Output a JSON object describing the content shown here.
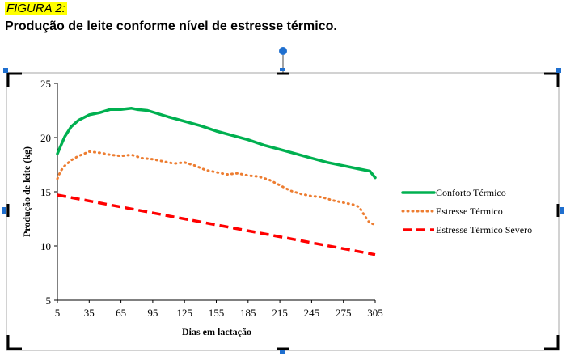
{
  "figure_label": "FIGURA 2:",
  "figure_title": "Produção de leite conforme nível de estresse térmico.",
  "colors": {
    "conforto": "#00b050",
    "estresse": "#ed7d31",
    "severo": "#ff0000",
    "handle": "#1f6fcf"
  },
  "chart_data": {
    "type": "line",
    "xlabel": "Dias em lactação",
    "ylabel": "Produção de leite (kg)",
    "xlim": [
      5,
      305
    ],
    "ylim": [
      5,
      25
    ],
    "xticks": [
      5,
      35,
      65,
      95,
      125,
      155,
      185,
      215,
      245,
      275,
      305
    ],
    "yticks": [
      5,
      10,
      15,
      20,
      25
    ],
    "legend_position": "right",
    "series": [
      {
        "name": "Conforto Térmico",
        "style": "solid",
        "x": [
          5,
          8,
          12,
          18,
          25,
          35,
          45,
          55,
          65,
          75,
          80,
          90,
          100,
          110,
          125,
          140,
          155,
          170,
          185,
          200,
          215,
          230,
          245,
          260,
          275,
          290,
          300,
          305
        ],
        "y": [
          18.5,
          19.2,
          20.1,
          21.0,
          21.6,
          22.1,
          22.3,
          22.6,
          22.6,
          22.7,
          22.6,
          22.5,
          22.2,
          21.9,
          21.5,
          21.1,
          20.6,
          20.2,
          19.8,
          19.3,
          18.9,
          18.5,
          18.1,
          17.7,
          17.4,
          17.1,
          16.9,
          16.3
        ]
      },
      {
        "name": "Estresse Térmico",
        "style": "dotted",
        "x": [
          5,
          8,
          12,
          18,
          25,
          35,
          45,
          55,
          65,
          75,
          85,
          95,
          105,
          115,
          125,
          135,
          145,
          155,
          165,
          175,
          185,
          195,
          205,
          215,
          225,
          235,
          245,
          255,
          265,
          275,
          285,
          290,
          295,
          300,
          305
        ],
        "y": [
          16.2,
          16.9,
          17.4,
          17.9,
          18.3,
          18.7,
          18.6,
          18.4,
          18.3,
          18.4,
          18.1,
          18.0,
          17.8,
          17.6,
          17.7,
          17.4,
          17.0,
          16.8,
          16.6,
          16.7,
          16.5,
          16.4,
          16.1,
          15.6,
          15.1,
          14.8,
          14.6,
          14.5,
          14.2,
          14.0,
          13.8,
          13.6,
          12.8,
          12.1,
          12.0
        ]
      },
      {
        "name": "Estresse Térmico Severo",
        "style": "dashed",
        "x": [
          5,
          305
        ],
        "y": [
          14.7,
          9.2
        ]
      }
    ]
  }
}
